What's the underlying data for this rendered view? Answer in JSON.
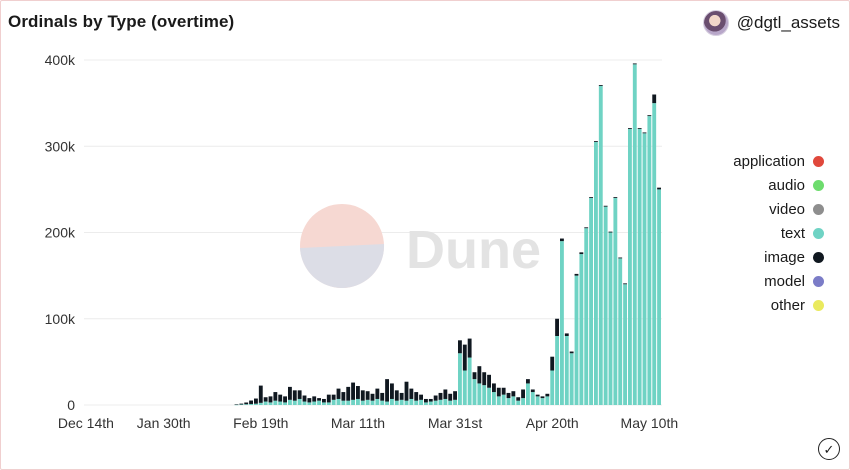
{
  "header": {
    "title": "Ordinals by Type (overtime)",
    "username": "@dgtl_assets"
  },
  "watermark": {
    "text": "Dune"
  },
  "icons": {
    "avatar": "avatar-icon",
    "status": "checkmark-circle-icon"
  },
  "colors": {
    "application": "#e0483c",
    "audio": "#6ddc6d",
    "video": "#8e8e8e",
    "text": "#6fd3c4",
    "image": "#101820",
    "model": "#7b7cc7",
    "other": "#eaea5e"
  },
  "chart_data": {
    "type": "bar",
    "stacked": true,
    "title": "Ordinals by Type (overtime)",
    "xlabel": "",
    "ylabel": "",
    "ylim": [
      0,
      400000
    ],
    "y_ticks": [
      0,
      100000,
      200000,
      300000,
      400000
    ],
    "y_tick_labels": [
      "0",
      "100k",
      "200k",
      "300k",
      "400k"
    ],
    "x_tick_labels": [
      "Dec 14th",
      "Jan 30th",
      "Feb 19th",
      "Mar 11th",
      "Mar 31st",
      "Apr 20th",
      "May 10th"
    ],
    "x_tick_index": [
      0,
      16,
      36,
      56,
      76,
      96,
      116
    ],
    "grid": "horizontal",
    "legend_position": "right",
    "legend": [
      "application",
      "audio",
      "video",
      "text",
      "image",
      "model",
      "other"
    ],
    "categories_note": "daily bars",
    "series": [
      {
        "name": "text",
        "values": [
          0,
          0,
          0,
          0,
          0,
          0,
          0,
          0,
          0,
          0,
          0,
          0,
          0,
          0,
          0,
          0,
          0,
          0,
          0,
          0,
          0,
          0,
          0,
          0,
          0,
          0,
          0,
          0,
          0,
          0,
          0,
          300,
          600,
          900,
          1200,
          1500,
          2500,
          4000,
          3000,
          5000,
          4000,
          3000,
          6000,
          5000,
          7000,
          4000,
          3000,
          4000,
          5000,
          3000,
          3000,
          6000,
          7000,
          5000,
          5000,
          6000,
          7000,
          5000,
          6000,
          5000,
          7000,
          5000,
          4000,
          7000,
          5000,
          6000,
          5000,
          7000,
          5000,
          6000,
          3000,
          4000,
          5000,
          6000,
          7000,
          5000,
          6000,
          60000,
          40000,
          55000,
          30000,
          25000,
          23000,
          20000,
          15000,
          10000,
          12000,
          8000,
          10000,
          5000,
          8000,
          25000,
          15000,
          10000,
          8000,
          10000,
          40000,
          80000,
          190000,
          80000,
          60000,
          150000,
          175000,
          205000,
          240000,
          305000,
          370000,
          230000,
          200000,
          240000,
          170000,
          140000,
          320000,
          395000,
          320000,
          315000,
          335000,
          350000,
          250000
        ],
        "note": "partial, values estimated"
      },
      {
        "name": "image",
        "values": [
          0,
          0,
          0,
          0,
          0,
          0,
          0,
          0,
          0,
          0,
          0,
          0,
          0,
          0,
          0,
          0,
          0,
          0,
          0,
          0,
          0,
          0,
          0,
          0,
          0,
          0,
          0,
          0,
          0,
          0,
          0,
          500,
          1000,
          2000,
          4000,
          6000,
          20000,
          5000,
          7000,
          10000,
          8000,
          7000,
          15000,
          12000,
          10000,
          7000,
          5000,
          6000,
          3000,
          4000,
          9000,
          6000,
          12000,
          10000,
          16000,
          20000,
          15000,
          12000,
          10000,
          8000,
          12000,
          9000,
          26000,
          18000,
          12000,
          8000,
          22000,
          12000,
          10000,
          6000,
          4000,
          3000,
          6000,
          8000,
          11000,
          8000,
          10000,
          15000,
          30000,
          22000,
          8000,
          20000,
          15000,
          15000,
          10000,
          10000,
          8000,
          6000,
          6000,
          4000,
          10000,
          5000,
          3000,
          2000,
          2000,
          3000,
          16000,
          20000,
          3000,
          3000,
          2000,
          2000,
          2000,
          1000,
          1000,
          1000,
          1000,
          1000,
          1000,
          1000,
          1000,
          1000,
          1000,
          1000,
          1000,
          1000,
          1000,
          10000,
          2000
        ]
      }
    ]
  },
  "legend": [
    {
      "label": "application",
      "color": "#e0483c"
    },
    {
      "label": "audio",
      "color": "#6ddc6d"
    },
    {
      "label": "video",
      "color": "#8e8e8e"
    },
    {
      "label": "text",
      "color": "#6fd3c4"
    },
    {
      "label": "image",
      "color": "#101820"
    },
    {
      "label": "model",
      "color": "#7b7cc7"
    },
    {
      "label": "other",
      "color": "#eaea5e"
    }
  ]
}
